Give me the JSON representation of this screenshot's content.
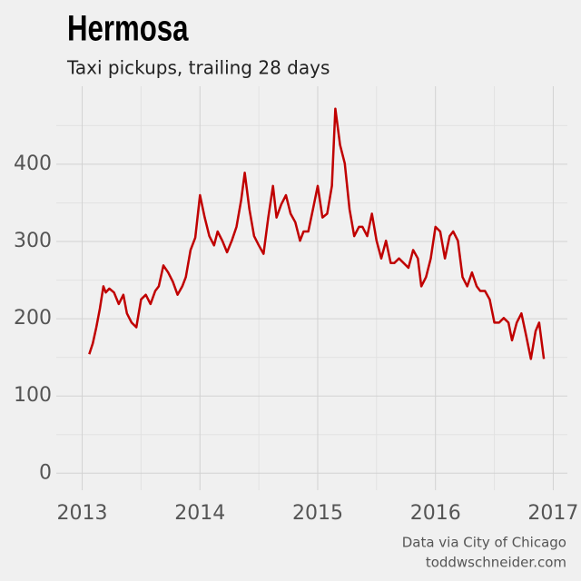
{
  "chart_data": {
    "type": "line",
    "title": "Hermosa",
    "subtitle": "Taxi pickups, trailing 28 days",
    "source": "Data via City of Chicago",
    "credit": "toddwschneider.com",
    "x": [
      2013.06,
      2013.09,
      2013.12,
      2013.15,
      2013.18,
      2013.2,
      2013.23,
      2013.27,
      2013.31,
      2013.35,
      2013.38,
      2013.42,
      2013.46,
      2013.5,
      2013.54,
      2013.58,
      2013.62,
      2013.65,
      2013.69,
      2013.73,
      2013.77,
      2013.81,
      2013.85,
      2013.88,
      2013.92,
      2013.96,
      2014.0,
      2014.04,
      2014.08,
      2014.12,
      2014.15,
      2014.19,
      2014.23,
      2014.27,
      2014.31,
      2014.35,
      2014.38,
      2014.42,
      2014.46,
      2014.5,
      2014.54,
      2014.58,
      2014.62,
      2014.65,
      2014.69,
      2014.73,
      2014.77,
      2014.81,
      2014.85,
      2014.88,
      2014.92,
      2014.96,
      2015.0,
      2015.04,
      2015.08,
      2015.12,
      2015.15,
      2015.19,
      2015.23,
      2015.27,
      2015.31,
      2015.35,
      2015.38,
      2015.42,
      2015.46,
      2015.5,
      2015.54,
      2015.58,
      2015.62,
      2015.65,
      2015.69,
      2015.73,
      2015.77,
      2015.81,
      2015.85,
      2015.88,
      2015.92,
      2015.96,
      2016.0,
      2016.04,
      2016.08,
      2016.12,
      2016.15,
      2016.19,
      2016.23,
      2016.27,
      2016.31,
      2016.35,
      2016.38,
      2016.42,
      2016.46,
      2016.5,
      2016.54,
      2016.58,
      2016.62,
      2016.65,
      2016.69,
      2016.73,
      2016.77,
      2016.81,
      2016.85,
      2016.88,
      2016.92
    ],
    "series": [
      {
        "color": "#c00000",
        "values": [
          154,
          168,
          189,
          213,
          242,
          234,
          239,
          234,
          219,
          231,
          207,
          195,
          189,
          225,
          231,
          219,
          236,
          242,
          269,
          260,
          248,
          231,
          242,
          254,
          289,
          305,
          360,
          331,
          307,
          295,
          313,
          301,
          286,
          301,
          319,
          354,
          389,
          342,
          307,
          295,
          284,
          331,
          372,
          331,
          348,
          360,
          336,
          325,
          301,
          313,
          313,
          342,
          372,
          331,
          336,
          372,
          472,
          425,
          401,
          342,
          307,
          319,
          319,
          307,
          336,
          301,
          278,
          301,
          272,
          272,
          278,
          272,
          266,
          289,
          278,
          242,
          254,
          278,
          319,
          313,
          278,
          307,
          313,
          301,
          254,
          242,
          260,
          242,
          236,
          236,
          225,
          195,
          195,
          201,
          195,
          172,
          195,
          207,
          178,
          148,
          184,
          195,
          148
        ]
      }
    ],
    "xlim": [
      2012.78,
      2017.12
    ],
    "xticks": [
      2013,
      2014,
      2015,
      2016,
      2017
    ],
    "xminor": [
      2013.5,
      2014.5,
      2015.5,
      2016.5
    ],
    "ylim": [
      -22,
      501
    ],
    "yticks": [
      0,
      100,
      200,
      300,
      400
    ],
    "yminor": [
      50,
      150,
      250,
      350,
      450
    ],
    "grid": true
  }
}
